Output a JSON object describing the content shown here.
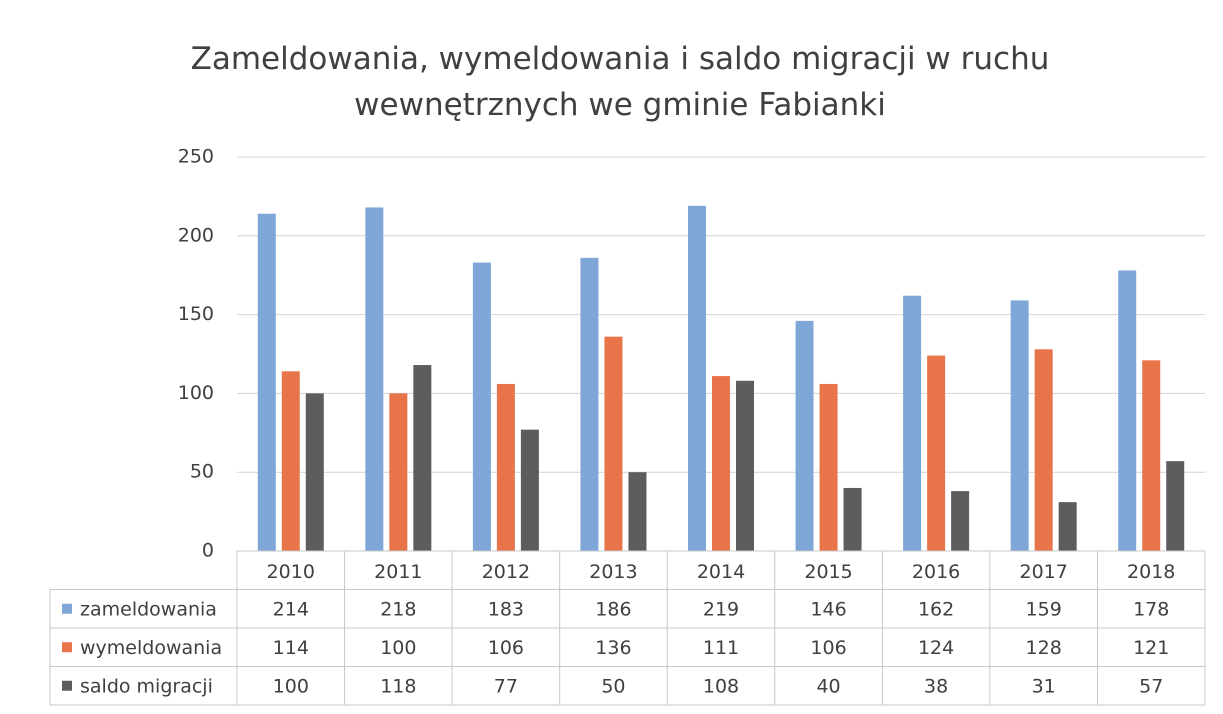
{
  "chart_data": {
    "type": "bar",
    "title": "Zameldowania, wymeldowania i saldo migracji w ruchu wewnętrznych we gminie Fabianki",
    "categories": [
      "2010",
      "2011",
      "2012",
      "2013",
      "2014",
      "2015",
      "2016",
      "2017",
      "2018"
    ],
    "series": [
      {
        "name": "zameldowania",
        "color": "#7ea7d8",
        "values": [
          214,
          218,
          183,
          186,
          219,
          146,
          162,
          159,
          178
        ]
      },
      {
        "name": "wymeldowania",
        "color": "#e8754a",
        "values": [
          114,
          100,
          106,
          136,
          111,
          106,
          124,
          128,
          121
        ]
      },
      {
        "name": "saldo migracji",
        "color": "#5d5d5d",
        "values": [
          100,
          118,
          77,
          50,
          108,
          40,
          38,
          31,
          57
        ]
      }
    ],
    "ylim": [
      0,
      250
    ],
    "yticks": [
      0,
      50,
      100,
      150,
      200,
      250
    ],
    "grid": true,
    "data_table": true
  }
}
